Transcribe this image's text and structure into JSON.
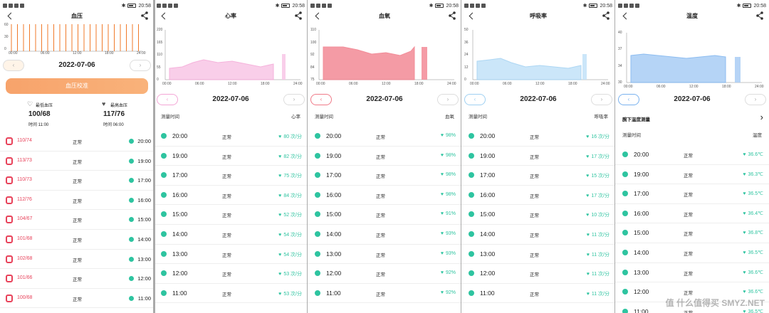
{
  "status_bar": {
    "time": "20:58"
  },
  "panels": [
    {
      "title": "血压",
      "date": "2022-07-06",
      "y_ticks": [
        "60",
        "30",
        "0"
      ],
      "x_ticks": [
        "00:00",
        "06:00",
        "12:00",
        "18:00",
        "24:00"
      ],
      "calibrate": "血压校准",
      "min_label": "最低血压",
      "min_value": "100/68",
      "min_time": "时间 11:00",
      "max_label": "最高血压",
      "max_value": "117/76",
      "max_time": "时间 06:00",
      "rows": [
        [
          "110/74",
          "正常",
          "20:00"
        ],
        [
          "113/73",
          "正常",
          "19:00"
        ],
        [
          "110/73",
          "正常",
          "17:00"
        ],
        [
          "112/76",
          "正常",
          "16:00"
        ],
        [
          "104/67",
          "正常",
          "15:00"
        ],
        [
          "101/68",
          "正常",
          "14:00"
        ],
        [
          "102/68",
          "正常",
          "13:00"
        ],
        [
          "101/66",
          "正常",
          "12:00"
        ],
        [
          "100/68",
          "正常",
          "11:00"
        ]
      ]
    },
    {
      "title": "心率",
      "date": "2022-07-06",
      "col_time": "测量时间",
      "col_val": "心率",
      "y_ticks": [
        "220",
        "165",
        "110",
        "55",
        "0"
      ],
      "x_ticks": [
        "00:00",
        "06:00",
        "12:00",
        "18:00",
        "24:00"
      ],
      "rows": [
        [
          "20:00",
          "正常",
          "80 次/分"
        ],
        [
          "19:00",
          "正常",
          "82 次/分"
        ],
        [
          "17:00",
          "正常",
          "75 次/分"
        ],
        [
          "16:00",
          "正常",
          "84 次/分"
        ],
        [
          "15:00",
          "正常",
          "52 次/分"
        ],
        [
          "14:00",
          "正常",
          "54 次/分"
        ],
        [
          "13:00",
          "正常",
          "54 次/分"
        ],
        [
          "12:00",
          "正常",
          "53 次/分"
        ],
        [
          "11:00",
          "正常",
          "53 次/分"
        ]
      ]
    },
    {
      "title": "血氧",
      "date": "2022-07-06",
      "col_time": "测量时间",
      "col_val": "血氧",
      "y_ticks": [
        "110",
        "100",
        "92",
        "84",
        "75"
      ],
      "x_ticks": [
        "00:00",
        "06:00",
        "12:00",
        "18:00",
        "24:00"
      ],
      "rows": [
        [
          "20:00",
          "正常",
          "98%"
        ],
        [
          "19:00",
          "正常",
          "98%"
        ],
        [
          "17:00",
          "正常",
          "98%"
        ],
        [
          "16:00",
          "正常",
          "98%"
        ],
        [
          "15:00",
          "正常",
          "91%"
        ],
        [
          "14:00",
          "正常",
          "93%"
        ],
        [
          "13:00",
          "正常",
          "93%"
        ],
        [
          "12:00",
          "正常",
          "92%"
        ],
        [
          "11:00",
          "正常",
          "92%"
        ]
      ]
    },
    {
      "title": "呼吸率",
      "date": "2022-07-06",
      "col_time": "测量时间",
      "col_val": "呼吸率",
      "y_ticks": [
        "50",
        "36",
        "24",
        "12",
        "0"
      ],
      "x_ticks": [
        "00:00",
        "06:00",
        "12:00",
        "18:00",
        "24:00"
      ],
      "rows": [
        [
          "20:00",
          "正常",
          "16 次/分"
        ],
        [
          "19:00",
          "正常",
          "17 次/分"
        ],
        [
          "17:00",
          "正常",
          "15 次/分"
        ],
        [
          "16:00",
          "正常",
          "17 次/分"
        ],
        [
          "15:00",
          "正常",
          "10 次/分"
        ],
        [
          "14:00",
          "正常",
          "11 次/分"
        ],
        [
          "13:00",
          "正常",
          "11 次/分"
        ],
        [
          "12:00",
          "正常",
          "11 次/分"
        ],
        [
          "11:00",
          "正常",
          "11 次/分"
        ]
      ]
    },
    {
      "title": "温度",
      "date": "2022-07-06",
      "col_time": "测量时间",
      "col_val": "温度",
      "extra": "腕下温度测量",
      "y_ticks": [
        "40",
        "37",
        "34",
        "30"
      ],
      "x_ticks": [
        "00:00",
        "06:00",
        "12:00",
        "18:00",
        "24:00"
      ],
      "rows": [
        [
          "20:00",
          "正常",
          "36.6℃"
        ],
        [
          "19:00",
          "正常",
          "36.3℃"
        ],
        [
          "17:00",
          "正常",
          "36.5℃"
        ],
        [
          "16:00",
          "正常",
          "36.4℃"
        ],
        [
          "15:00",
          "正常",
          "36.8℃"
        ],
        [
          "14:00",
          "正常",
          "36.5℃"
        ],
        [
          "13:00",
          "正常",
          "36.6℃"
        ],
        [
          "12:00",
          "正常",
          "36.6℃"
        ],
        [
          "11:00",
          "正常",
          "36.5℃"
        ]
      ]
    }
  ],
  "watermark": "值 什么值得买 SMYZ.NET"
}
